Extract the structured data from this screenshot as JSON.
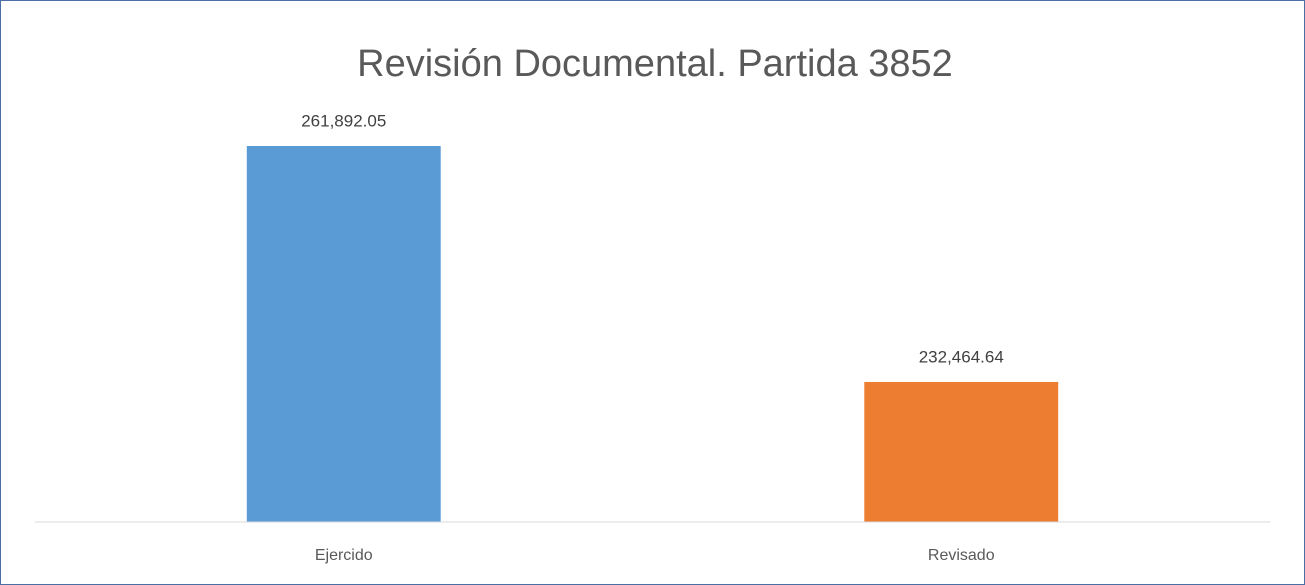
{
  "chart_data": {
    "type": "bar",
    "title": "Revisión Documental. Partida 3852",
    "categories": [
      "Ejercido",
      "Revisado"
    ],
    "values": [
      261892.05,
      232464.64
    ],
    "value_labels": [
      "261,892.05",
      "232,464.64"
    ],
    "colors": [
      "#5b9bd5",
      "#ed7d31"
    ],
    "ylim": [
      215000,
      270000
    ]
  }
}
